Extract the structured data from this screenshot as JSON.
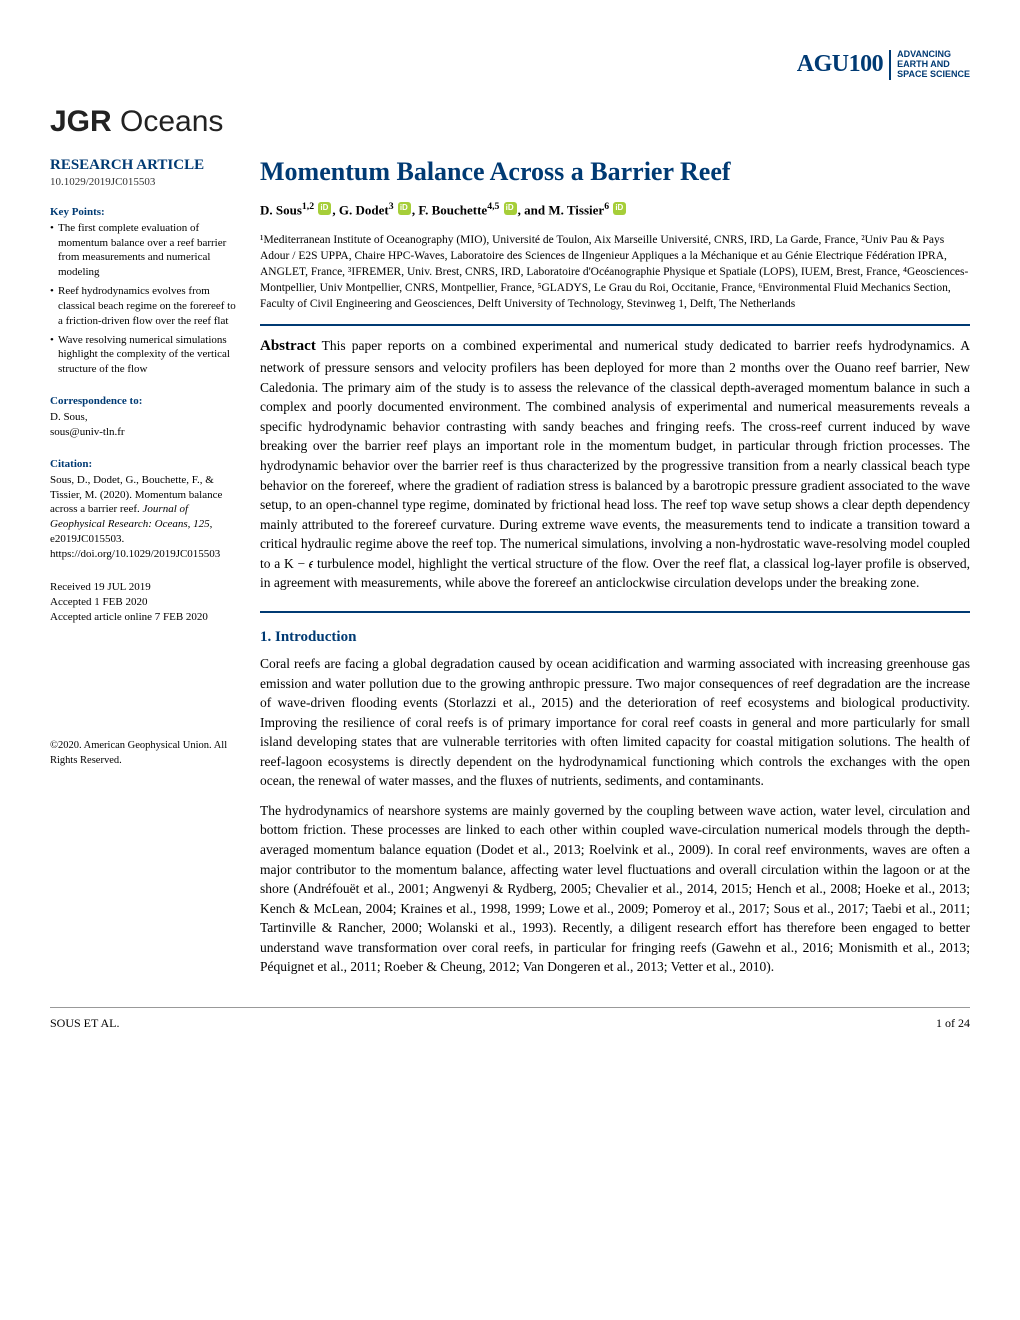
{
  "header": {
    "logo_main": "AGU100",
    "logo_tag_1": "ADVANCING",
    "logo_tag_2": "EARTH AND",
    "logo_tag_3": "SPACE SCIENCE"
  },
  "journal": {
    "prefix": "JGR",
    "name": "Oceans"
  },
  "sidebar": {
    "article_type": "RESEARCH ARTICLE",
    "doi": "10.1029/2019JC015503",
    "kp_heading": "Key Points:",
    "kp": [
      "The first complete evaluation of momentum balance over a reef barrier from measurements and numerical modeling",
      "Reef hydrodynamics evolves from classical beach regime on the forereef to a friction-driven flow over the reef flat",
      "Wave resolving numerical simulations highlight the complexity of the vertical structure of the flow"
    ],
    "corr_heading": "Correspondence to:",
    "corr_name": "D. Sous,",
    "corr_email": "sous@univ-tln.fr",
    "cit_heading": "Citation:",
    "cit_text": "Sous, D., Dodet, G., Bouchette, F., & Tissier, M. (2020). Momentum balance across a barrier reef. ",
    "cit_journal": "Journal of Geophysical Research: Oceans",
    "cit_vol": ", 125",
    "cit_rest": ", e2019JC015503. https://doi.org/10.1029/2019JC015503",
    "received": "Received 19 JUL 2019",
    "accepted": "Accepted 1 FEB 2020",
    "online": "Accepted article online 7 FEB 2020",
    "copyright": "©2020. American Geophysical Union. All Rights Reserved."
  },
  "main": {
    "title": "Momentum Balance Across a Barrier Reef",
    "authors_html": "D. Sous<sup>1,2</sup> {orcid}, G. Dodet<sup>3</sup> {orcid}, F. Bouchette<sup>4,5</sup> {orcid}, and M. Tissier<sup>6</sup> {orcid}",
    "authors_1": "D. Sous",
    "authors_1s": "1,2",
    "authors_2": ", G. Dodet",
    "authors_2s": "3",
    "authors_3": ", F. Bouchette",
    "authors_3s": "4,5",
    "authors_4": ", and M. Tissier",
    "authors_4s": "6",
    "affiliations": "¹Mediterranean Institute of Oceanography (MIO), Université de Toulon, Aix Marseille Université, CNRS, IRD, La Garde, France, ²Univ Pau & Pays Adour / E2S UPPA, Chaire HPC-Waves, Laboratoire des Sciences de lIngenieur Appliques a la Méchanique et au Génie Electrique Fédération IPRA, ANGLET, France, ³IFREMER, Univ. Brest, CNRS, IRD, Laboratoire d'Océanographie Physique et Spatiale (LOPS), IUEM, Brest, France, ⁴Geosciences-Montpellier, Univ Montpellier, CNRS, Montpellier, France, ⁵GLADYS, Le Grau du Roi, Occitanie, France, ⁶Environmental Fluid Mechanics Section, Faculty of Civil Engineering and Geosciences, Delft University of Technology, Stevinweg 1, Delft, The Netherlands",
    "abstract_label": "Abstract",
    "abstract_text": "   This paper reports on a combined experimental and numerical study dedicated to barrier reefs hydrodynamics. A network of pressure sensors and velocity profilers has been deployed for more than 2 months over the Ouano reef barrier, New Caledonia. The primary aim of the study is to assess the relevance of the classical depth-averaged momentum balance in such a complex and poorly documented environment. The combined analysis of experimental and numerical measurements reveals a specific hydrodynamic behavior contrasting with sandy beaches and fringing reefs. The cross-reef current induced by wave breaking over the barrier reef plays an important role in the momentum budget, in particular through friction processes. The hydrodynamic behavior over the barrier reef is thus characterized by the progressive transition from a nearly classical beach type behavior on the forereef, where the gradient of radiation stress is balanced by a barotropic pressure gradient associated to the wave setup, to an open-channel type regime, dominated by frictional head loss. The reef top wave setup shows a clear depth dependency mainly attributed to the forereef curvature. During extreme wave events, the measurements tend to indicate a transition toward a critical hydraulic regime above the reef top. The numerical simulations, involving a non-hydrostatic wave-resolving model coupled to a K − 𝜖 turbulence model, highlight the vertical structure of the flow. Over the reef flat, a classical log-layer profile is observed, in agreement with measurements, while above the forereef an anticlockwise circulation develops under the breaking zone.",
    "s1_heading": "1. Introduction",
    "p1": "Coral reefs are facing a global degradation caused by ocean acidification and warming associated with increasing greenhouse gas emission and water pollution due to the growing anthropic pressure. Two major consequences of reef degradation are the increase of wave-driven flooding events (Storlazzi et al., 2015) and the deterioration of reef ecosystems and biological productivity. Improving the resilience of coral reefs is of primary importance for coral reef coasts in general and more particularly for small island developing states that are vulnerable territories with often limited capacity for coastal mitigation solutions. The health of reef-lagoon ecosystems is directly dependent on the hydrodynamical functioning which controls the exchanges with the open ocean, the renewal of water masses, and the fluxes of nutrients, sediments, and contaminants.",
    "p2": "The hydrodynamics of nearshore systems are mainly governed by the coupling between wave action, water level, circulation and bottom friction. These processes are linked to each other within coupled wave-circulation numerical models through the depth-averaged momentum balance equation (Dodet et al., 2013; Roelvink et al., 2009). In coral reef environments, waves are often a major contributor to the momentum balance, affecting water level fluctuations and overall circulation within the lagoon or at the shore (Andréfouët et al., 2001; Angwenyi & Rydberg, 2005; Chevalier et al., 2014, 2015; Hench et al., 2008; Hoeke et al., 2013; Kench & McLean, 2004; Kraines et al., 1998, 1999; Lowe et al., 2009; Pomeroy et al., 2017; Sous et al., 2017; Taebi et al., 2011; Tartinville & Rancher, 2000; Wolanski et al., 1993). Recently, a diligent research effort has therefore been engaged to better understand wave transformation over coral reefs, in particular for fringing reefs (Gawehn et al., 2016; Monismith et al., 2013; Péquignet et al., 2011; Roeber & Cheung, 2012; Van Dongeren et al., 2013; Vetter et al., 2010)."
  },
  "footer": {
    "left": "SOUS ET AL.",
    "right": "1 of 24"
  }
}
